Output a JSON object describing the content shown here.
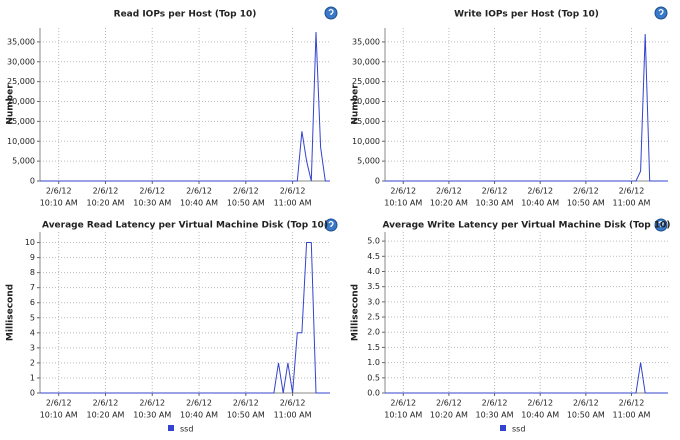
{
  "chart_data": [
    {
      "type": "line",
      "title": "Read IOPs per Host (Top 10)",
      "y_label": "Number",
      "x": [
        "2/6/12 10:06 AM",
        "2/6/12 11:01 AM",
        "2/6/12 11:02 AM",
        "2/6/12 11:03 AM",
        "2/6/12 11:04 AM",
        "2/6/12 11:05 AM",
        "2/6/12 11:06 AM",
        "2/6/12 11:07 AM",
        "2/6/12 11:08 AM"
      ],
      "series": [
        {
          "color": "#3344cc",
          "values": [
            0,
            0,
            12500,
            5000,
            0,
            37500,
            8500,
            0,
            0
          ]
        }
      ],
      "xlim": [
        "2/6/12 10:06 AM",
        "2/6/12 11:08 AM"
      ],
      "ylim": [
        0,
        38500
      ],
      "xticks": [
        {
          "value": "2/6/12 10:10 AM",
          "label": [
            "2/6/12",
            "10:10 AM"
          ]
        },
        {
          "value": "2/6/12 10:20 AM",
          "label": [
            "2/6/12",
            "10:20 AM"
          ]
        },
        {
          "value": "2/6/12 10:30 AM",
          "label": [
            "2/6/12",
            "10:30 AM"
          ]
        },
        {
          "value": "2/6/12 10:40 AM",
          "label": [
            "2/6/12",
            "10:40 AM"
          ]
        },
        {
          "value": "2/6/12 10:50 AM",
          "label": [
            "2/6/12",
            "10:50 AM"
          ]
        },
        {
          "value": "2/6/12 11:00 AM",
          "label": [
            "2/6/12",
            "11:00 AM"
          ]
        }
      ],
      "yticks": [
        0,
        {
          "value": 5000,
          "label": "5,000"
        },
        {
          "value": 10000,
          "label": "10,000"
        },
        {
          "value": 15000,
          "label": "15,000"
        },
        {
          "value": 20000,
          "label": "20,000"
        },
        {
          "value": 25000,
          "label": "25,000"
        },
        {
          "value": 30000,
          "label": "30,000"
        },
        {
          "value": 35000,
          "label": "35,000"
        }
      ],
      "grid": true
    },
    {
      "type": "line",
      "title": "Write IOPs per Host (Top 10)",
      "y_label": "Number",
      "x": [
        "2/6/12 10:06 AM",
        "2/6/12 11:01 AM",
        "2/6/12 11:02 AM",
        "2/6/12 11:03 AM",
        "2/6/12 11:04 AM",
        "2/6/12 11:08 AM"
      ],
      "series": [
        {
          "color": "#3344cc",
          "values": [
            0,
            0,
            2500,
            37000,
            0,
            0
          ]
        }
      ],
      "xlim": [
        "2/6/12 10:06 AM",
        "2/6/12 11:08 AM"
      ],
      "ylim": [
        0,
        38500
      ],
      "xticks": [
        {
          "value": "2/6/12 10:10 AM",
          "label": [
            "2/6/12",
            "10:10 AM"
          ]
        },
        {
          "value": "2/6/12 10:20 AM",
          "label": [
            "2/6/12",
            "10:20 AM"
          ]
        },
        {
          "value": "2/6/12 10:30 AM",
          "label": [
            "2/6/12",
            "10:30 AM"
          ]
        },
        {
          "value": "2/6/12 10:40 AM",
          "label": [
            "2/6/12",
            "10:40 AM"
          ]
        },
        {
          "value": "2/6/12 10:50 AM",
          "label": [
            "2/6/12",
            "10:50 AM"
          ]
        },
        {
          "value": "2/6/12 11:00 AM",
          "label": [
            "2/6/12",
            "11:00 AM"
          ]
        }
      ],
      "yticks": [
        0,
        {
          "value": 5000,
          "label": "5,000"
        },
        {
          "value": 10000,
          "label": "10,000"
        },
        {
          "value": 15000,
          "label": "15,000"
        },
        {
          "value": 20000,
          "label": "20,000"
        },
        {
          "value": 25000,
          "label": "25,000"
        },
        {
          "value": 30000,
          "label": "30,000"
        },
        {
          "value": 35000,
          "label": "35,000"
        }
      ],
      "grid": true
    },
    {
      "type": "line",
      "title": "Average Read Latency per Virtual Machine Disk (Top 10)",
      "y_label": "Millisecond",
      "x": [
        "2/6/12 10:06 AM",
        "2/6/12 10:56 AM",
        "2/6/12 10:57 AM",
        "2/6/12 10:58 AM",
        "2/6/12 10:59 AM",
        "2/6/12 11:00 AM",
        "2/6/12 11:01 AM",
        "2/6/12 11:02 AM",
        "2/6/12 11:03 AM",
        "2/6/12 11:04 AM",
        "2/6/12 11:05 AM",
        "2/6/12 11:08 AM"
      ],
      "series": [
        {
          "name": "ssd",
          "color": "#3344cc",
          "values": [
            0,
            0,
            2,
            0,
            2,
            0,
            4,
            4,
            10,
            10,
            0,
            0
          ]
        }
      ],
      "xlim": [
        "2/6/12 10:06 AM",
        "2/6/12 11:08 AM"
      ],
      "ylim": [
        0,
        10.7
      ],
      "xticks": [
        {
          "value": "2/6/12 10:10 AM",
          "label": [
            "2/6/12",
            "10:10 AM"
          ]
        },
        {
          "value": "2/6/12 10:20 AM",
          "label": [
            "2/6/12",
            "10:20 AM"
          ]
        },
        {
          "value": "2/6/12 10:30 AM",
          "label": [
            "2/6/12",
            "10:30 AM"
          ]
        },
        {
          "value": "2/6/12 10:40 AM",
          "label": [
            "2/6/12",
            "10:40 AM"
          ]
        },
        {
          "value": "2/6/12 10:50 AM",
          "label": [
            "2/6/12",
            "10:50 AM"
          ]
        },
        {
          "value": "2/6/12 11:00 AM",
          "label": [
            "2/6/12",
            "11:00 AM"
          ]
        }
      ],
      "yticks": [
        0,
        1,
        2,
        3,
        4,
        5,
        6,
        7,
        8,
        9,
        10
      ],
      "grid": true
    },
    {
      "type": "line",
      "title": "Average Write Latency per Virtual Machine Disk (Top 10)",
      "y_label": "Millisecond",
      "x": [
        "2/6/12 10:06 AM",
        "2/6/12 11:01 AM",
        "2/6/12 11:02 AM",
        "2/6/12 11:03 AM",
        "2/6/12 11:08 AM"
      ],
      "series": [
        {
          "name": "ssd",
          "color": "#3344cc",
          "values": [
            0,
            0,
            1,
            0,
            0
          ]
        }
      ],
      "xlim": [
        "2/6/12 10:06 AM",
        "2/6/12 11:08 AM"
      ],
      "ylim": [
        0,
        5.3
      ],
      "xticks": [
        {
          "value": "2/6/12 10:10 AM",
          "label": [
            "2/6/12",
            "10:10 AM"
          ]
        },
        {
          "value": "2/6/12 10:20 AM",
          "label": [
            "2/6/12",
            "10:20 AM"
          ]
        },
        {
          "value": "2/6/12 10:30 AM",
          "label": [
            "2/6/12",
            "10:30 AM"
          ]
        },
        {
          "value": "2/6/12 10:40 AM",
          "label": [
            "2/6/12",
            "10:40 AM"
          ]
        },
        {
          "value": "2/6/12 10:50 AM",
          "label": [
            "2/6/12",
            "10:50 AM"
          ]
        },
        {
          "value": "2/6/12 11:00 AM",
          "label": [
            "2/6/12",
            "11:00 AM"
          ]
        }
      ],
      "yticks": [
        {
          "value": 0,
          "label": "0.0"
        },
        {
          "value": 0.5,
          "label": "0.5"
        },
        {
          "value": 1,
          "label": "1.0"
        },
        {
          "value": 1.5,
          "label": "1.5"
        },
        {
          "value": 2,
          "label": "2.0"
        },
        {
          "value": 2.5,
          "label": "2.5"
        },
        {
          "value": 3,
          "label": "3.0"
        },
        {
          "value": 3.5,
          "label": "3.5"
        },
        {
          "value": 4,
          "label": "4.0"
        },
        {
          "value": 4.5,
          "label": "4.5"
        },
        {
          "value": 5,
          "label": "5.0"
        }
      ],
      "grid": true
    }
  ]
}
